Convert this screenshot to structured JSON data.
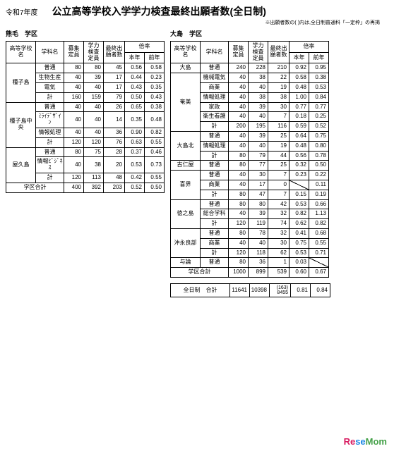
{
  "header": {
    "year": "令和7年度",
    "title": "公立高等学校入学学力検査最終出願者数(全日制)",
    "note": "※出願者数の( )内は,全日制普通科「一定枠」の再掲"
  },
  "th": {
    "school": "高等学校名",
    "dept": "学科名",
    "cap": "募集\n定員",
    "exam": "学力\n検査\n定員",
    "final": "最終出\n願者数",
    "ratio": "倍率",
    "cur": "本年",
    "prev": "前年"
  },
  "left": {
    "gaku": "熊毛　学区",
    "rows": [
      {
        "sch": "種子島",
        "dep": "普通",
        "cap": 80,
        "exam": 80,
        "fin": 45,
        "cur": 0.56,
        "prev": 0.58,
        "r": 1
      },
      {
        "dep": "生物生産",
        "cap": 40,
        "exam": 39,
        "fin": 17,
        "cur": 0.44,
        "prev": 0.23
      },
      {
        "dep": "電気",
        "cap": 40,
        "exam": 40,
        "fin": 17,
        "cur": 0.43,
        "prev": 0.35
      },
      {
        "dep": "計",
        "cap": 160,
        "exam": 159,
        "fin": 79,
        "cur": 0.5,
        "prev": 0.43
      },
      {
        "sch": "種子島中央",
        "dep": "普通",
        "cap": 40,
        "exam": 40,
        "fin": 26,
        "cur": 0.65,
        "prev": 0.38,
        "r": 1
      },
      {
        "dep": "ﾐﾗｲﾃﾞｻﾞｲ\nﾝ",
        "cap": 40,
        "exam": 40,
        "fin": 14,
        "cur": 0.35,
        "prev": 0.48
      },
      {
        "dep": "情報処理",
        "cap": 40,
        "exam": 40,
        "fin": 36,
        "cur": 0.9,
        "prev": 0.82
      },
      {
        "dep": "計",
        "cap": 120,
        "exam": 120,
        "fin": 76,
        "cur": 0.63,
        "prev": 0.55
      },
      {
        "sch": "屋久島",
        "dep": "普通",
        "cap": 80,
        "exam": 75,
        "fin": 28,
        "cur": 0.37,
        "prev": 0.46,
        "r": 1
      },
      {
        "dep": "情報ﾋﾞｼﾞﾈｽ",
        "cap": 40,
        "exam": 38,
        "fin": 20,
        "cur": 0.53,
        "prev": 0.73
      },
      {
        "dep": "計",
        "cap": 120,
        "exam": 113,
        "fin": 48,
        "cur": 0.42,
        "prev": 0.55
      }
    ],
    "total": {
      "lbl": "学区合計",
      "cap": 400,
      "exam": 392,
      "fin": 203,
      "cur": 0.52,
      "prev": 0.5
    }
  },
  "right": {
    "gaku": "大島　学区",
    "rows": [
      {
        "sch": "大島",
        "dep": "普通",
        "cap": 240,
        "exam": 228,
        "fin": 210,
        "cur": 0.92,
        "prev": 0.95,
        "r": 1
      },
      {
        "sch": "奄美",
        "dep": "機械電気",
        "cap": 40,
        "exam": 38,
        "fin": 22,
        "cur": 0.58,
        "prev": 0.38,
        "r": 1
      },
      {
        "dep": "商業",
        "cap": 40,
        "exam": 40,
        "fin": 19,
        "cur": 0.48,
        "prev": 0.53
      },
      {
        "dep": "情報処理",
        "cap": 40,
        "exam": 38,
        "fin": 38,
        "cur": 1.0,
        "prev": 0.84
      },
      {
        "dep": "家政",
        "cap": 40,
        "exam": 39,
        "fin": 30,
        "cur": 0.77,
        "prev": 0.77
      },
      {
        "dep": "衛生看護",
        "cap": 40,
        "exam": 40,
        "fin": 7,
        "cur": 0.18,
        "prev": 0.25
      },
      {
        "dep": "計",
        "cap": 200,
        "exam": 195,
        "fin": 116,
        "cur": 0.59,
        "prev": 0.52
      },
      {
        "sch": "大島北",
        "dep": "普通",
        "cap": 40,
        "exam": 39,
        "fin": 25,
        "cur": 0.64,
        "prev": 0.75,
        "r": 1
      },
      {
        "dep": "情報処理",
        "cap": 40,
        "exam": 40,
        "fin": 19,
        "cur": 0.48,
        "prev": 0.8
      },
      {
        "dep": "計",
        "cap": 80,
        "exam": 79,
        "fin": 44,
        "cur": 0.56,
        "prev": 0.78
      },
      {
        "sch": "古仁屋",
        "dep": "普通",
        "cap": 80,
        "exam": 77,
        "fin": 25,
        "cur": 0.32,
        "prev": 0.5,
        "r": 1
      },
      {
        "sch": "喜界",
        "dep": "普通",
        "cap": 40,
        "exam": 30,
        "fin": 7,
        "cur": 0.23,
        "prev": 0.22,
        "r": 1
      },
      {
        "dep": "商業",
        "cap": 40,
        "exam": 17,
        "fin": 0,
        "cur": "",
        "prev": 0.11,
        "diag": 1
      },
      {
        "dep": "計",
        "cap": 80,
        "exam": 47,
        "fin": 7,
        "cur": 0.15,
        "prev": 0.19
      },
      {
        "sch": "徳之島",
        "dep": "普通",
        "cap": 80,
        "exam": 80,
        "fin": 42,
        "cur": 0.53,
        "prev": 0.66,
        "r": 1
      },
      {
        "dep": "総合学科",
        "cap": 40,
        "exam": 39,
        "fin": 32,
        "cur": 0.82,
        "prev": 1.13
      },
      {
        "dep": "計",
        "cap": 120,
        "exam": 119,
        "fin": 74,
        "cur": 0.62,
        "prev": 0.82
      },
      {
        "sch": "沖永良部",
        "dep": "普通",
        "cap": 80,
        "exam": 78,
        "fin": 32,
        "cur": 0.41,
        "prev": 0.68,
        "r": 1
      },
      {
        "dep": "商業",
        "cap": 40,
        "exam": 40,
        "fin": 30,
        "cur": 0.75,
        "prev": 0.55
      },
      {
        "dep": "計",
        "cap": 120,
        "exam": 118,
        "fin": 62,
        "cur": 0.53,
        "prev": 0.71
      },
      {
        "sch": "与論",
        "dep": "普通",
        "cap": 80,
        "exam": 36,
        "fin": 1,
        "cur": 0.03,
        "prev": "",
        "r": 1,
        "diagp": 1
      }
    ],
    "total": {
      "lbl": "学区合計",
      "cap": 1000,
      "exam": 899,
      "fin": 539,
      "cur": 0.6,
      "prev": 0.67
    },
    "grand": {
      "lbl": "全日制　合計",
      "cap": 11641,
      "exam": 10398,
      "fin": "(163)\n8455",
      "cur": 0.81,
      "prev": 0.84
    }
  },
  "colwidths": {
    "sch": 42,
    "dep": 40,
    "cap": 28,
    "exam": 28,
    "fin": 30,
    "cur": 28,
    "prev": 28
  },
  "logo": {
    "re": "Re",
    "se": "se",
    "mom": "Mom"
  }
}
